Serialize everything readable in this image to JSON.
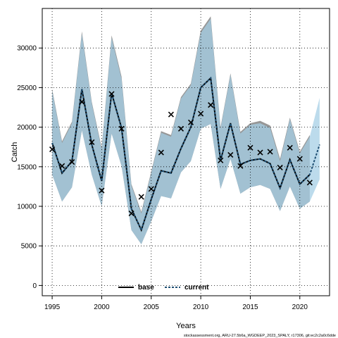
{
  "chart_data": {
    "type": "line",
    "xlabel": "Years",
    "ylabel": "Catch",
    "xlim": [
      1994.0,
      2023.0
    ],
    "ylim": [
      -1300,
      35000
    ],
    "x_ticks": [
      1995,
      2000,
      2005,
      2010,
      2015,
      2020
    ],
    "y_ticks": [
      0,
      5000,
      10000,
      15000,
      20000,
      25000,
      30000
    ],
    "grid": true,
    "legend_position": "bottom-left",
    "years": [
      1995,
      1996,
      1997,
      1998,
      1999,
      2000,
      2001,
      2002,
      2003,
      2004,
      2005,
      2006,
      2007,
      2008,
      2009,
      2010,
      2011,
      2012,
      2013,
      2014,
      2015,
      2016,
      2017,
      2018,
      2019,
      2020,
      2021,
      2022
    ],
    "observed": [
      17200,
      15100,
      15600,
      23200,
      18100,
      12000,
      24200,
      19800,
      9100,
      11200,
      12200,
      16800,
      21600,
      19800,
      20600,
      21700,
      22800,
      15800,
      16500,
      15100,
      17400,
      16800,
      16900,
      14900,
      17400,
      16000,
      13000,
      null
    ],
    "series": [
      {
        "name": "base",
        "line_color": "#000000",
        "band_color": "#8c8c8c",
        "values": [
          18000,
          14200,
          15700,
          24800,
          17800,
          13200,
          24300,
          19900,
          9700,
          7000,
          10900,
          14500,
          14200,
          17300,
          20000,
          25000,
          26200,
          15800,
          20500,
          15300,
          15800,
          16000,
          15400,
          12300,
          15900,
          12800,
          14000,
          null
        ],
        "lower": [
          14000,
          10600,
          12400,
          19600,
          14000,
          10000,
          19200,
          15100,
          7000,
          5200,
          8100,
          11300,
          11000,
          14300,
          15700,
          19800,
          20400,
          12200,
          16000,
          11600,
          12400,
          12700,
          12200,
          9400,
          12500,
          9700,
          10600,
          null
        ],
        "upper": [
          24800,
          18200,
          20700,
          32100,
          23200,
          17400,
          31600,
          26400,
          12800,
          9300,
          14400,
          19500,
          19000,
          23800,
          25500,
          32200,
          34000,
          20000,
          26800,
          19400,
          20500,
          20800,
          20200,
          16000,
          21200,
          16900,
          19000,
          null
        ]
      },
      {
        "name": "current",
        "line_color": "#1f4f73",
        "band_color": "#a6cfe5",
        "values": [
          18000,
          14200,
          15700,
          24800,
          17800,
          13200,
          24300,
          19900,
          9700,
          7000,
          10900,
          14500,
          14200,
          17300,
          20000,
          25000,
          26200,
          15800,
          20500,
          15300,
          15800,
          16000,
          15400,
          12300,
          15900,
          12800,
          14000,
          17800
        ],
        "lower": [
          14000,
          10600,
          12400,
          19600,
          14000,
          10000,
          19200,
          15100,
          7000,
          5200,
          8100,
          11300,
          11000,
          14300,
          15700,
          19800,
          20400,
          12200,
          16000,
          11600,
          12400,
          12700,
          12200,
          9400,
          12500,
          9700,
          10600,
          13400
        ],
        "upper": [
          24600,
          18000,
          20500,
          31800,
          23000,
          17200,
          31300,
          26100,
          12600,
          9100,
          14200,
          19300,
          18800,
          23600,
          25300,
          31900,
          33700,
          19800,
          26600,
          19200,
          20300,
          20500,
          19900,
          15700,
          21000,
          16700,
          18800,
          23700
        ]
      }
    ]
  },
  "legend": {
    "base_label": "base",
    "current_label": "current"
  },
  "footnote": "stockassessment.org, ARU-27.5b6a_WGDEEP_2023_SPALY, r17306, git:ec2c2a0c6dde"
}
